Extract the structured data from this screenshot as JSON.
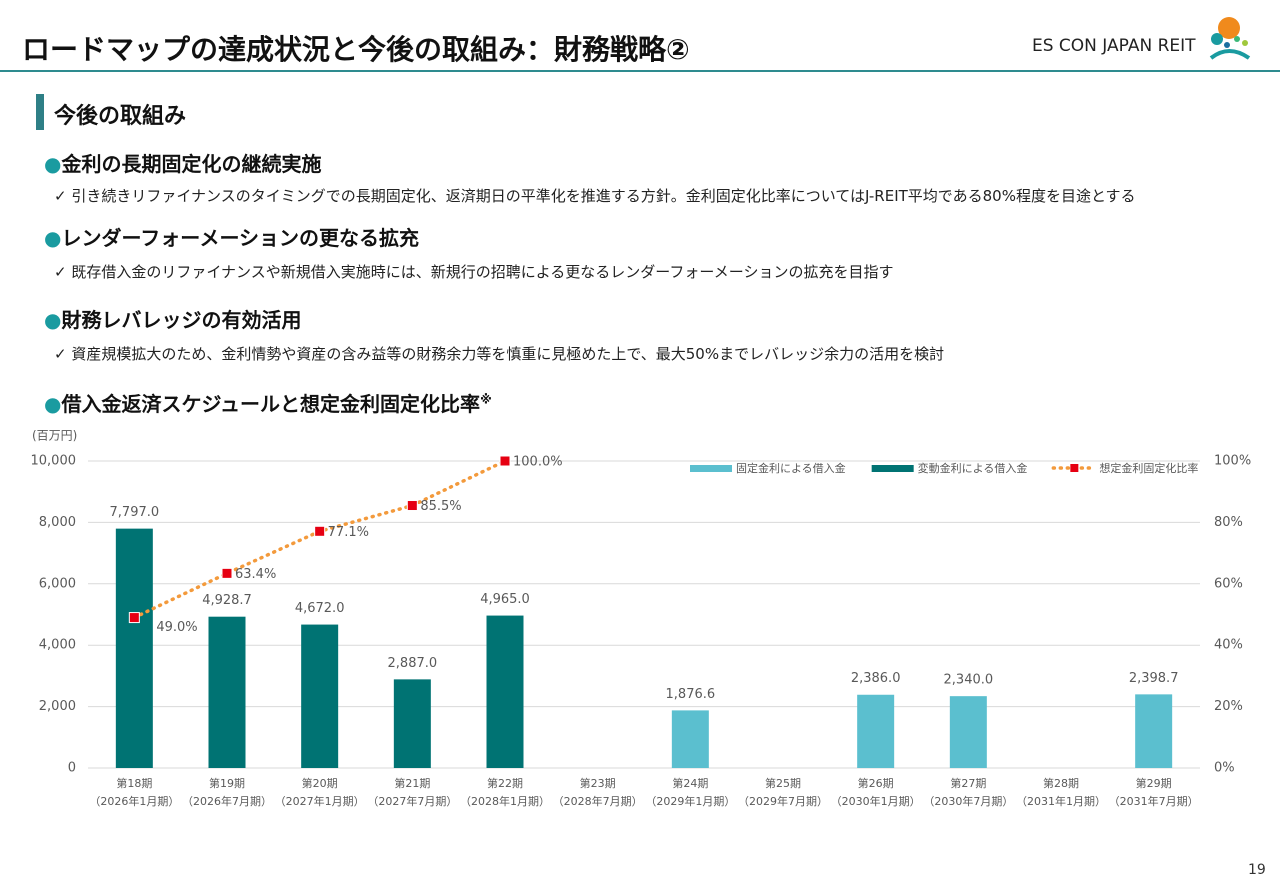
{
  "header": {
    "title": "ロードマップの達成状況と今後の取組み：財務戦略②",
    "logo": "ES CON JAPAN REIT"
  },
  "section_title": "今後の取組み",
  "items": [
    {
      "heading": "金利の長期固定化の継続実施",
      "text": "引き続きリファイナンスのタイミングでの長期固定化、返済期日の平準化を推進する方針。金利固定化比率についてはJ-REIT平均である80%程度を目途とする"
    },
    {
      "heading": "レンダーフォーメーションの更なる拡充",
      "text": "既存借入金のリファイナンスや新規借入実施時には、新規行の招聘による更なるレンダーフォーメーションの拡充を目指す"
    },
    {
      "heading": "財務レバレッジの有効活用",
      "text": "資産規模拡大のため、金利情勢や資産の含み益等の財務余力等を慎重に見極めた上で、最大50%までレバレッジ余力の活用を検討"
    }
  ],
  "page_number": "19",
  "chart_data": {
    "type": "bar",
    "title": "借入金返済スケジュールと想定金利固定化比率",
    "title_note": "※",
    "y_label": "(百万円)",
    "categories": [
      "第18期",
      "第19期",
      "第20期",
      "第21期",
      "第22期",
      "第23期",
      "第24期",
      "第25期",
      "第26期",
      "第27期",
      "第28期",
      "第29期"
    ],
    "category_periods": [
      "（2026年1月期）",
      "（2026年7月期）",
      "（2027年1月期）",
      "（2027年7月期）",
      "（2028年1月期）",
      "（2028年7月期）",
      "（2029年1月期）",
      "（2029年7月期）",
      "（2030年1月期）",
      "（2030年7月期）",
      "（2031年1月期）",
      "（2031年7月期）"
    ],
    "series": [
      {
        "name": "固定金利による借入金",
        "type": "bar",
        "color": "#5bbfcf",
        "values": [
          null,
          null,
          null,
          null,
          null,
          null,
          1876.6,
          null,
          2386.0,
          2340.0,
          null,
          2398.7
        ],
        "value_labels": [
          null,
          null,
          null,
          null,
          null,
          null,
          "1,876.6",
          null,
          "2,386.0",
          "2,340.0",
          null,
          "2,398.7"
        ]
      },
      {
        "name": "変動金利による借入金",
        "type": "bar",
        "color": "#007373",
        "values": [
          7797.0,
          4928.7,
          4672.0,
          2887.0,
          4965.0,
          null,
          null,
          null,
          null,
          null,
          null,
          null
        ],
        "value_labels": [
          "7,797.0",
          "4,928.7",
          "4,672.0",
          "2,887.0",
          "4,965.0",
          null,
          null,
          null,
          null,
          null,
          null,
          null
        ]
      },
      {
        "name": "想定金利固定化比率",
        "type": "line",
        "axis": "y2",
        "color": "#f39a3c",
        "marker_color": "#e60012",
        "values": [
          49.0,
          63.4,
          77.1,
          85.5,
          100.0,
          null,
          null,
          null,
          null,
          null,
          null,
          null
        ],
        "value_labels": [
          "49.0%",
          "63.4%",
          "77.1%",
          "85.5%",
          "100.0%",
          null,
          null,
          null,
          null,
          null,
          null,
          null
        ]
      }
    ],
    "ylim": [
      0,
      10000
    ],
    "yticks": [
      0,
      {
        "value": 2000,
        "label": "2,000"
      },
      {
        "value": 4000,
        "label": "4,000"
      },
      {
        "value": 6000,
        "label": "6,000"
      },
      {
        "value": 8000,
        "label": "8,000"
      },
      {
        "value": 10000,
        "label": "10,000"
      }
    ],
    "y2lim": [
      0,
      100
    ],
    "y2ticks": [
      {
        "value": 0,
        "label": "0%"
      },
      {
        "value": 20,
        "label": "20%"
      },
      {
        "value": 40,
        "label": "40%"
      },
      {
        "value": 60,
        "label": "60%"
      },
      {
        "value": 80,
        "label": "80%"
      },
      {
        "value": 100,
        "label": "100%"
      }
    ],
    "grid": true,
    "legend": "upper right"
  }
}
